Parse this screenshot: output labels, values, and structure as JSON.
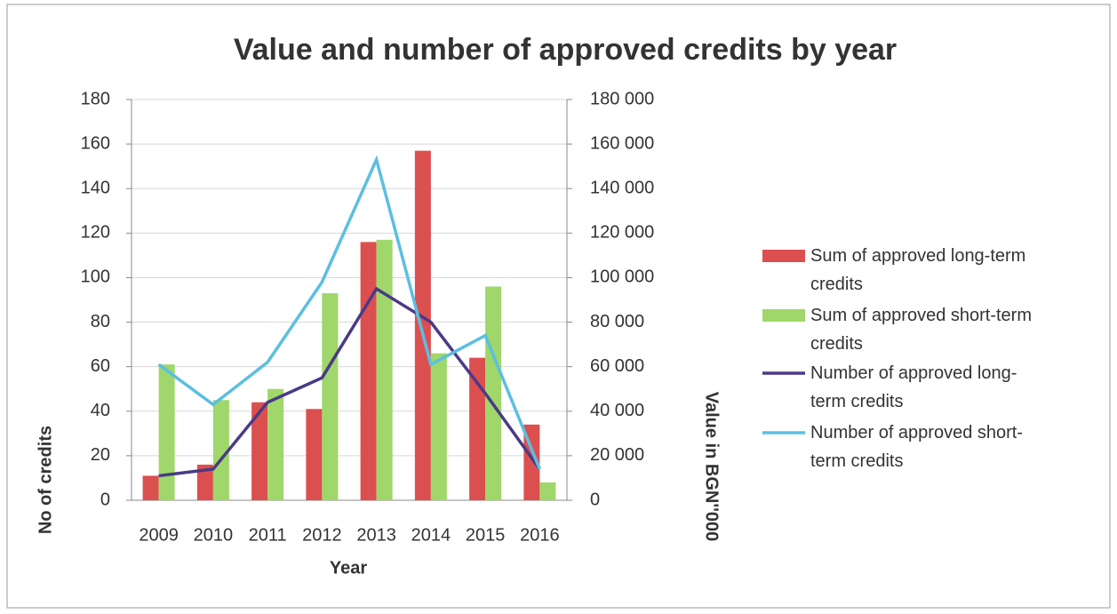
{
  "chart_data": {
    "type": "bar_line",
    "title": "Value and number of approved credits by year",
    "x_label": "Year",
    "y_label": "No of credits",
    "y2_label": "Value in BGN''000",
    "categories": [
      "2009",
      "2010",
      "2011",
      "2012",
      "2013",
      "2014",
      "2015",
      "2016"
    ],
    "ylim": [
      0,
      180
    ],
    "yticks": [
      0,
      20,
      40,
      60,
      80,
      100,
      120,
      140,
      160,
      180
    ],
    "y2lim": [
      0,
      180000
    ],
    "y2ticks": [
      0,
      {
        "value": 20000,
        "label": "20 000"
      },
      {
        "value": 40000,
        "label": "40 000"
      },
      {
        "value": 60000,
        "label": "60 000"
      },
      {
        "value": 80000,
        "label": "80 000"
      },
      {
        "value": 100000,
        "label": "100 000"
      },
      {
        "value": 120000,
        "label": "120 000"
      },
      {
        "value": 140000,
        "label": "140 000"
      },
      {
        "value": 160000,
        "label": "160 000"
      },
      {
        "value": 180000,
        "label": "180 000"
      }
    ],
    "grid": true,
    "series": [
      {
        "name": "Sum of approved long-term credits",
        "type": "bar",
        "axis": "y2",
        "color": "#dc4f4f",
        "values": [
          11000,
          16000,
          44000,
          41000,
          116000,
          157000,
          64000,
          34000
        ]
      },
      {
        "name": "Sum of approved short-term credits",
        "type": "bar",
        "axis": "y2",
        "color": "#9fd76a",
        "values": [
          61000,
          45000,
          50000,
          93000,
          117000,
          66000,
          96000,
          8000
        ]
      },
      {
        "name": "Number of approved long-term credits",
        "type": "line",
        "color": "#4a3a86",
        "values": [
          11,
          14,
          44,
          55,
          95,
          80,
          48,
          14
        ]
      },
      {
        "name": "Number of approved short-term credits",
        "type": "line",
        "color": "#5bbfe0",
        "values": [
          61,
          43,
          62,
          98,
          153,
          61,
          74,
          14
        ]
      }
    ]
  }
}
